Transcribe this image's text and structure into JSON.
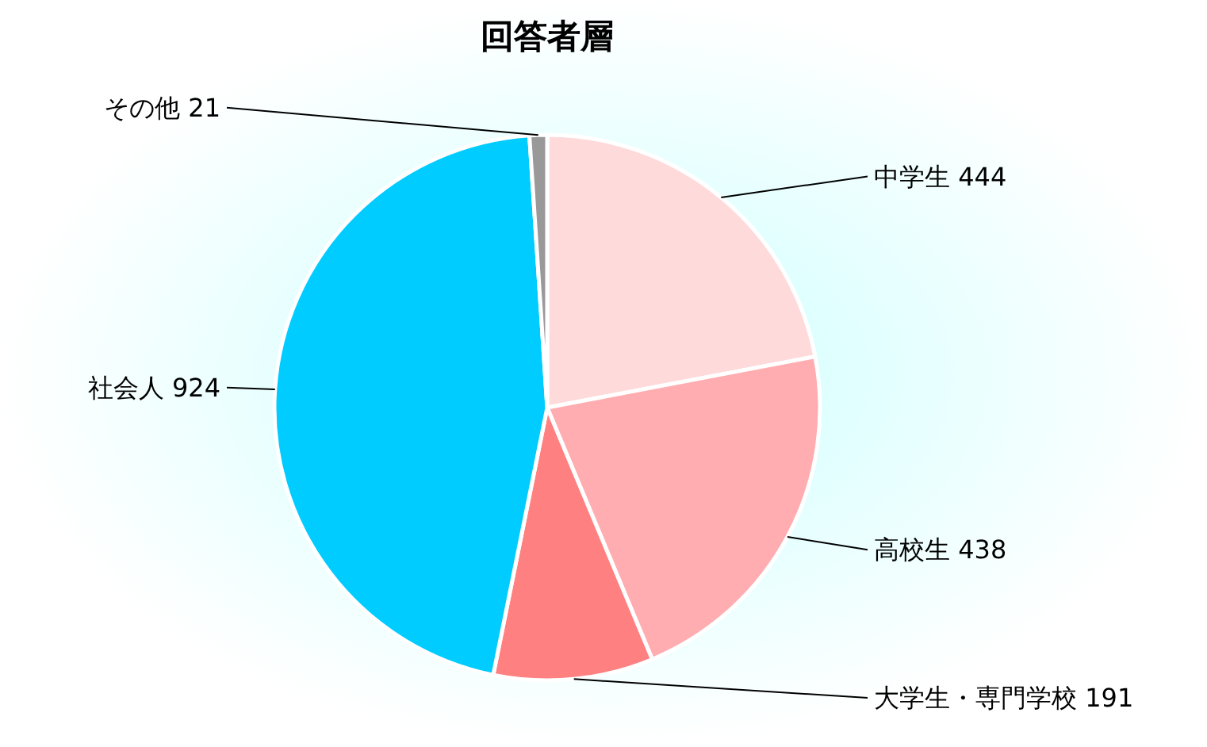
{
  "chart_data": {
    "type": "pie",
    "title": "回答者層",
    "categories": [
      "中学生",
      "高校生",
      "大学生・専門学校",
      "社会人",
      "その他"
    ],
    "values": [
      444,
      438,
      191,
      924,
      21
    ],
    "colors": [
      "#ffdadb",
      "#ffadb0",
      "#ff8080",
      "#00ccff",
      "#999999"
    ],
    "data_labels": true,
    "legend": false
  }
}
